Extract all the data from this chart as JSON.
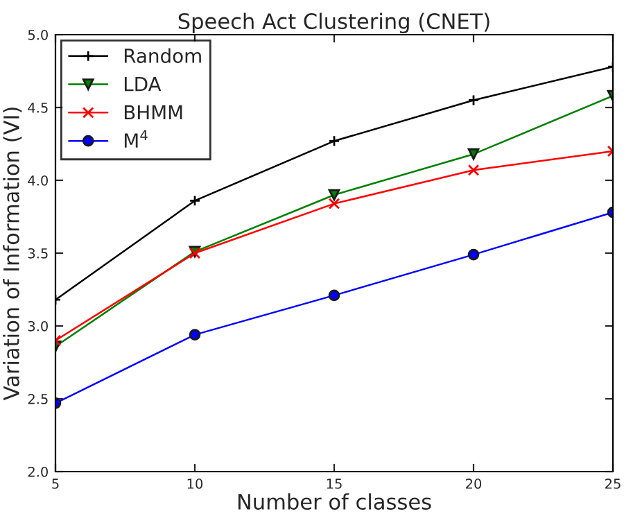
{
  "chart_data": {
    "type": "line",
    "title": "Speech Act Clustering (CNET)",
    "xlabel": "Number of classes",
    "ylabel": "Variation of Information (VI)",
    "x": [
      5,
      10,
      15,
      20,
      25
    ],
    "series": [
      {
        "name": "Random",
        "color": "#000000",
        "marker": "plus",
        "values": [
          3.18,
          3.86,
          4.27,
          4.55,
          4.78
        ]
      },
      {
        "name": "LDA",
        "color": "#008000",
        "marker": "triangle",
        "values": [
          2.86,
          3.51,
          3.9,
          4.18,
          4.58
        ]
      },
      {
        "name": "BHMM",
        "color": "#ff0000",
        "marker": "cross",
        "values": [
          2.9,
          3.5,
          3.84,
          4.07,
          4.2
        ]
      },
      {
        "name": "M$^{4}$",
        "color": "#0000ff",
        "marker": "circle",
        "values": [
          2.47,
          2.94,
          3.21,
          3.49,
          3.78
        ]
      }
    ],
    "xlim": [
      5,
      25
    ],
    "xticks": [
      5,
      10,
      15,
      20,
      25
    ],
    "ylim": [
      2.0,
      5.0
    ],
    "yticks": [
      {
        "value": 2.0,
        "label": "2.0"
      },
      {
        "value": 2.5,
        "label": "2.5"
      },
      {
        "value": 3.0,
        "label": "3.0"
      },
      {
        "value": 3.5,
        "label": "3.5"
      },
      {
        "value": 4.0,
        "label": "4.0"
      },
      {
        "value": 4.5,
        "label": "4.5"
      },
      {
        "value": 5.0,
        "label": "5.0"
      }
    ],
    "grid": false,
    "legend": "top left",
    "line_style": "solid"
  }
}
